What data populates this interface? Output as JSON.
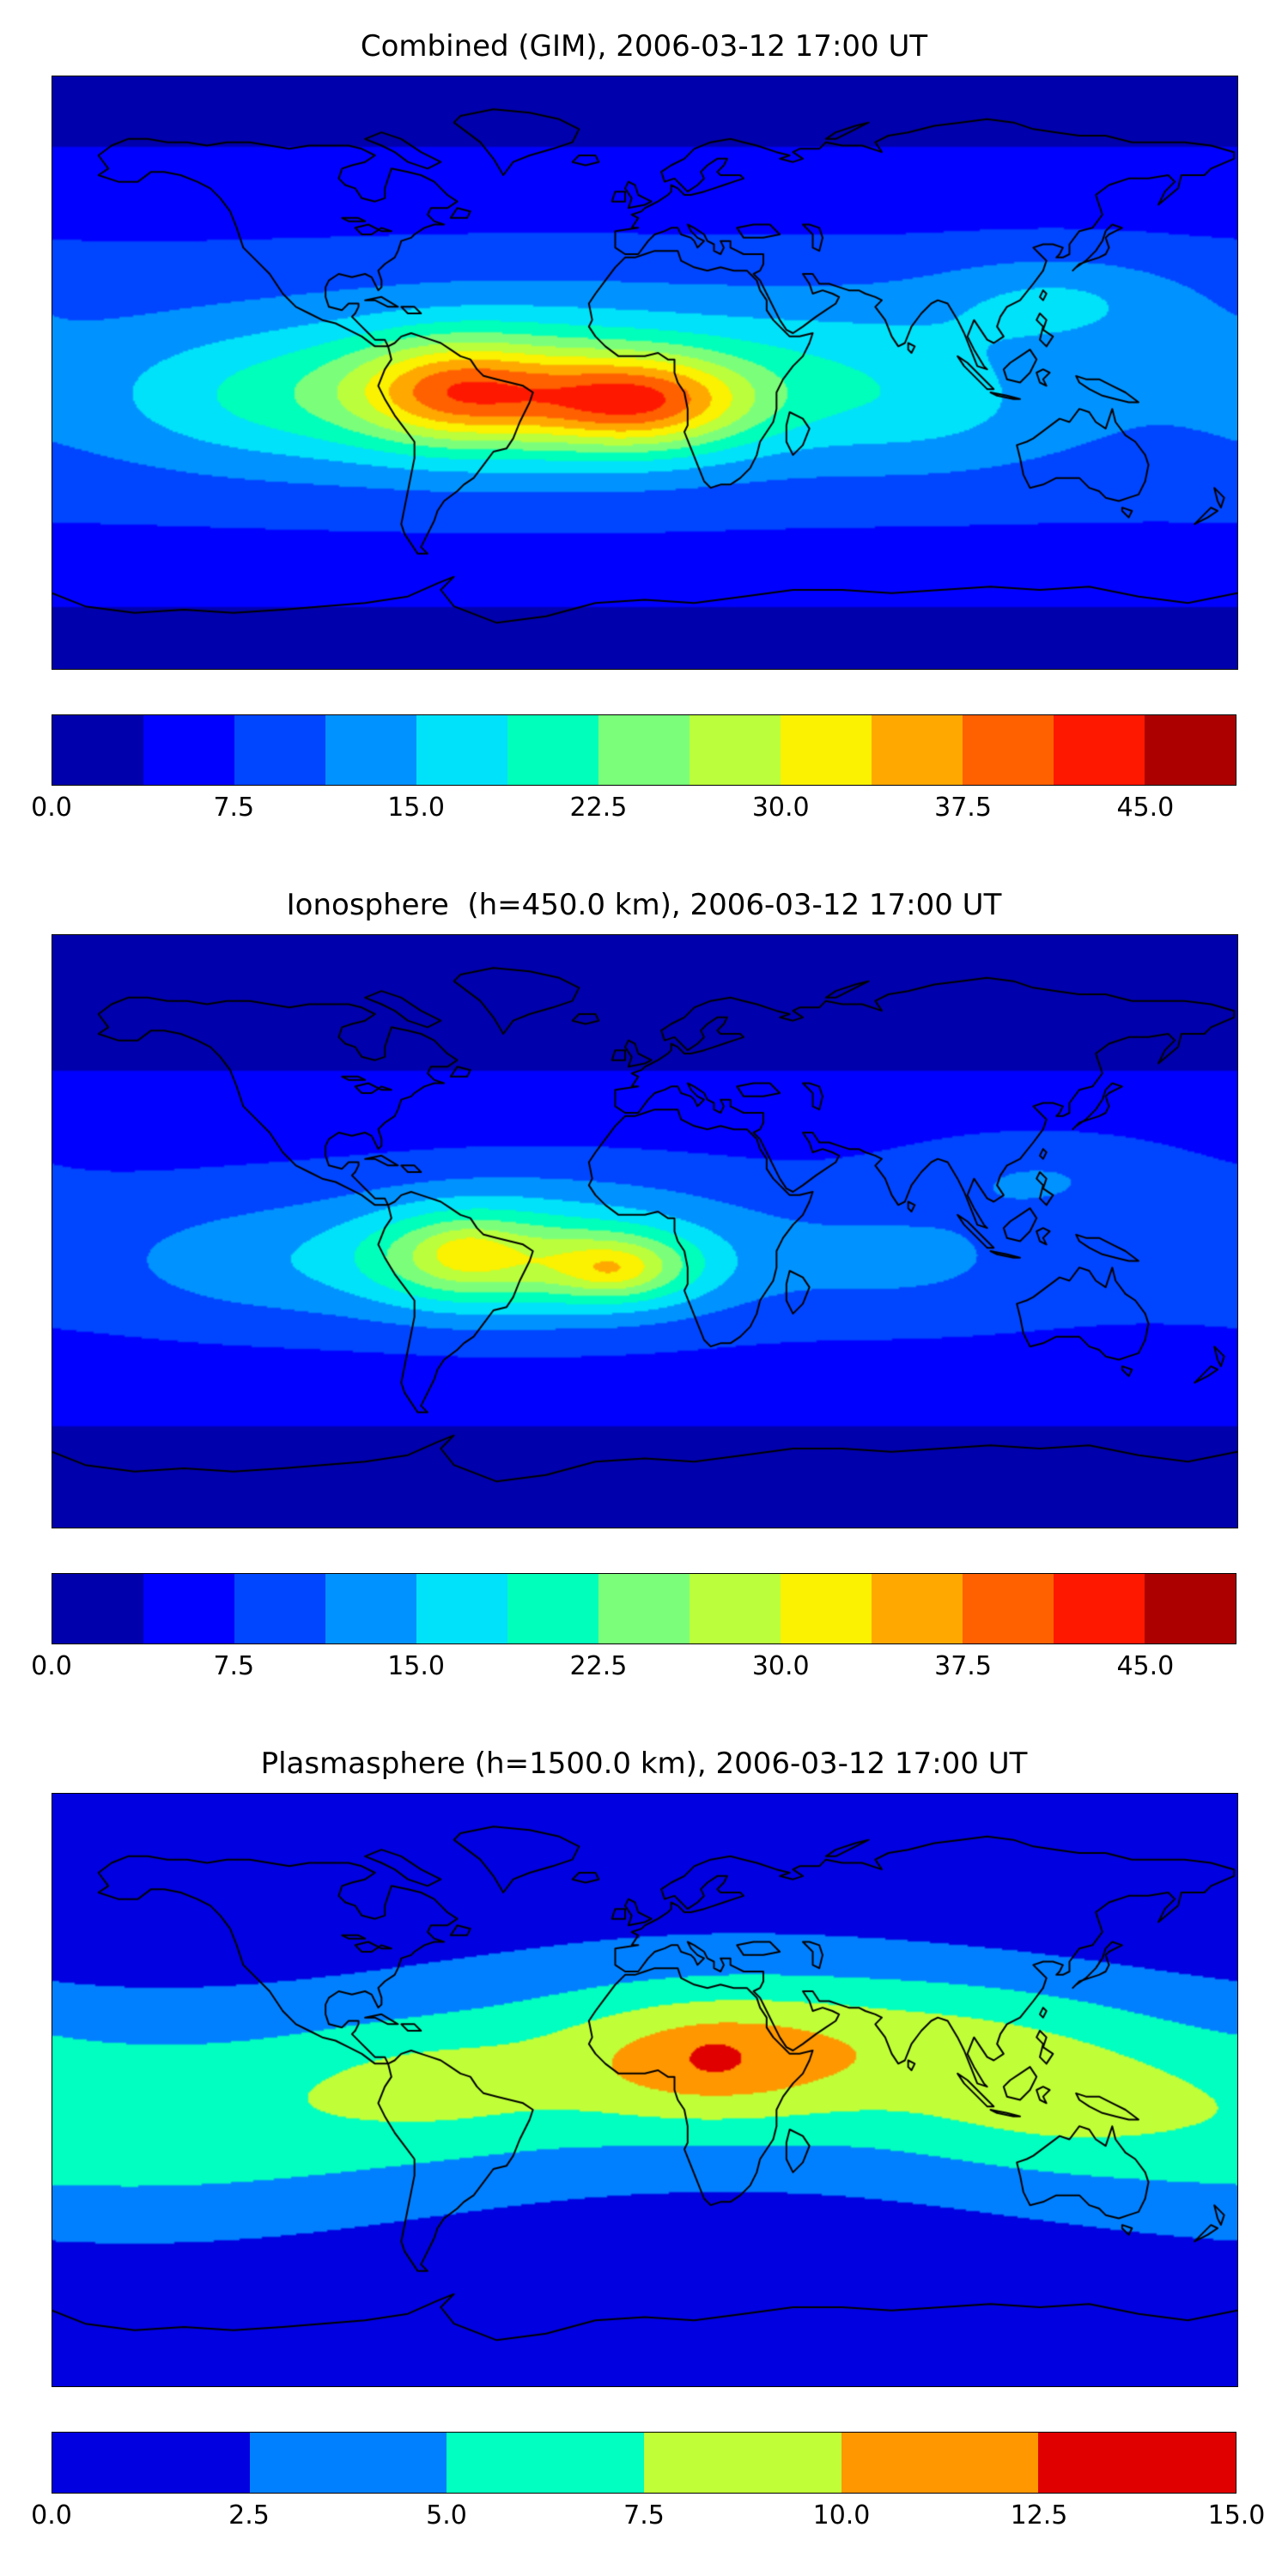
{
  "figure": {
    "background": "#ffffff",
    "text_color": "#000000",
    "coastline_color": "#000000"
  },
  "chart_data": [
    {
      "type": "heatmap",
      "subtype": "filled-contour-world-map",
      "title": "Combined (GIM), 2006-03-12 17:00 UT",
      "projection": "equirectangular",
      "lon_range": [
        -180,
        180
      ],
      "lat_range": [
        -90,
        90
      ],
      "colormap": "jet",
      "num_levels": 13,
      "value_min": 0,
      "value_max": 48.75,
      "level_colors": [
        "#0000ac",
        "#0000ff",
        "#0045ff",
        "#0093ff",
        "#00e2fa",
        "#00ffbb",
        "#7bff7b",
        "#bbff3c",
        "#faf200",
        "#ffa900",
        "#ff6100",
        "#ff1800",
        "#ac0000"
      ],
      "colorbar_tick_values": [
        0,
        7.5,
        15,
        22.5,
        30,
        37.5,
        45
      ],
      "colorbar_tick_labels": [
        "0.0",
        "7.5",
        "15.0",
        "22.5",
        "30.0",
        "37.5",
        "45.0"
      ],
      "peak_value_approx": 43,
      "peak_location_approx": {
        "lon": -2,
        "lat": -9
      },
      "field_model": {
        "base": {
          "offset": 3.2,
          "lat_amp": 8,
          "lat_center": -3,
          "lat_sigma": 38,
          "polar_dim": 2.5,
          "polar_sigma": 14
        },
        "blobs": [
          {
            "lon": -57,
            "lat": -6,
            "amp": 18,
            "sx": 22,
            "sy": 11
          },
          {
            "lon": -2,
            "lat": -9,
            "amp": 22,
            "sx": 24,
            "sy": 10
          },
          {
            "lon": -30,
            "lat": -4,
            "amp": 11,
            "sx": 55,
            "sy": 18
          },
          {
            "lon": -115,
            "lat": -8,
            "amp": 6,
            "sx": 35,
            "sy": 14
          },
          {
            "lon": 125,
            "lat": 22,
            "amp": 6,
            "sx": 28,
            "sy": 10
          },
          {
            "lon": 85,
            "lat": -12,
            "amp": 4,
            "sx": 30,
            "sy": 13
          },
          {
            "lon": 60,
            "lat": 5,
            "amp": 3,
            "sx": 30,
            "sy": 15
          }
        ]
      }
    },
    {
      "type": "heatmap",
      "subtype": "filled-contour-world-map",
      "title": "Ionosphere  (h=450.0 km), 2006-03-12 17:00 UT",
      "projection": "equirectangular",
      "lon_range": [
        -180,
        180
      ],
      "lat_range": [
        -90,
        90
      ],
      "colormap": "jet",
      "num_levels": 13,
      "value_min": 0,
      "value_max": 48.75,
      "level_colors": [
        "#0000ac",
        "#0000ff",
        "#0045ff",
        "#0093ff",
        "#00e2fa",
        "#00ffbb",
        "#7bff7b",
        "#bbff3c",
        "#faf200",
        "#ffa900",
        "#ff6100",
        "#ff1800",
        "#ac0000"
      ],
      "colorbar_tick_values": [
        0,
        7.5,
        15,
        22.5,
        30,
        37.5,
        45
      ],
      "colorbar_tick_labels": [
        "0.0",
        "7.5",
        "15.0",
        "22.5",
        "30.0",
        "37.5",
        "45.0"
      ],
      "peak_value_approx": 34,
      "peak_location_approx": {
        "lon": -8,
        "lat": -11
      },
      "field_model": {
        "base": {
          "offset": 1.9,
          "lat_amp": 6.8,
          "lat_center": -6,
          "lat_sigma": 34,
          "polar_dim": 2.0,
          "polar_sigma": 14
        },
        "blobs": [
          {
            "lon": -55,
            "lat": -8,
            "amp": 13,
            "sx": 20,
            "sy": 10
          },
          {
            "lon": -54,
            "lat": -6,
            "amp": 3,
            "sx": 7,
            "sy": 4
          },
          {
            "lon": -8,
            "lat": -11,
            "amp": 14,
            "sx": 18,
            "sy": 8
          },
          {
            "lon": -10,
            "lat": -12,
            "amp": 3,
            "sx": 8,
            "sy": 4
          },
          {
            "lon": -30,
            "lat": -6,
            "amp": 9,
            "sx": 45,
            "sy": 16
          },
          {
            "lon": -115,
            "lat": -10,
            "amp": 4,
            "sx": 35,
            "sy": 13
          },
          {
            "lon": 120,
            "lat": 18,
            "amp": 4,
            "sx": 30,
            "sy": 10
          },
          {
            "lon": 80,
            "lat": -10,
            "amp": 3,
            "sx": 30,
            "sy": 12
          }
        ]
      }
    },
    {
      "type": "heatmap",
      "subtype": "filled-contour-world-map",
      "title": "Plasmasphere (h=1500.0 km), 2006-03-12 17:00 UT",
      "projection": "equirectangular",
      "lon_range": [
        -180,
        180
      ],
      "lat_range": [
        -90,
        90
      ],
      "colormap": "jet",
      "num_levels": 6,
      "value_min": 0,
      "value_max": 15,
      "level_colors": [
        "#0000e0",
        "#0080ff",
        "#00ffc0",
        "#c0ff37",
        "#ff9700",
        "#e00000"
      ],
      "colorbar_tick_values": [
        0,
        2.5,
        5,
        7.5,
        10,
        12.5,
        15
      ],
      "colorbar_tick_labels": [
        "0.0",
        "2.5",
        "5.0",
        "7.5",
        "10.0",
        "12.5",
        "15.0"
      ],
      "peak_value_approx": 13.5,
      "peak_location_approx": {
        "lon": 21,
        "lat": 10
      },
      "field_model": {
        "base": {
          "offset": 0.8,
          "band": {
            "amp": 6.2,
            "sigma": 24,
            "tilt_amp": 8,
            "tilt_lon0": 25
          }
        },
        "blobs": [
          {
            "lon": 20,
            "lat": 9,
            "amp": 4.6,
            "sx": 30,
            "sy": 13
          },
          {
            "lon": 21,
            "lat": 10,
            "amp": 1.4,
            "sx": 6,
            "sy": 4
          },
          {
            "lon": 95,
            "lat": 18,
            "amp": 2.2,
            "sx": 45,
            "sy": 13
          },
          {
            "lon": 125,
            "lat": -5,
            "amp": 1.6,
            "sx": 30,
            "sy": 12
          },
          {
            "lon": -65,
            "lat": 2,
            "amp": 1.8,
            "sx": 25,
            "sy": 10
          }
        ]
      }
    }
  ]
}
